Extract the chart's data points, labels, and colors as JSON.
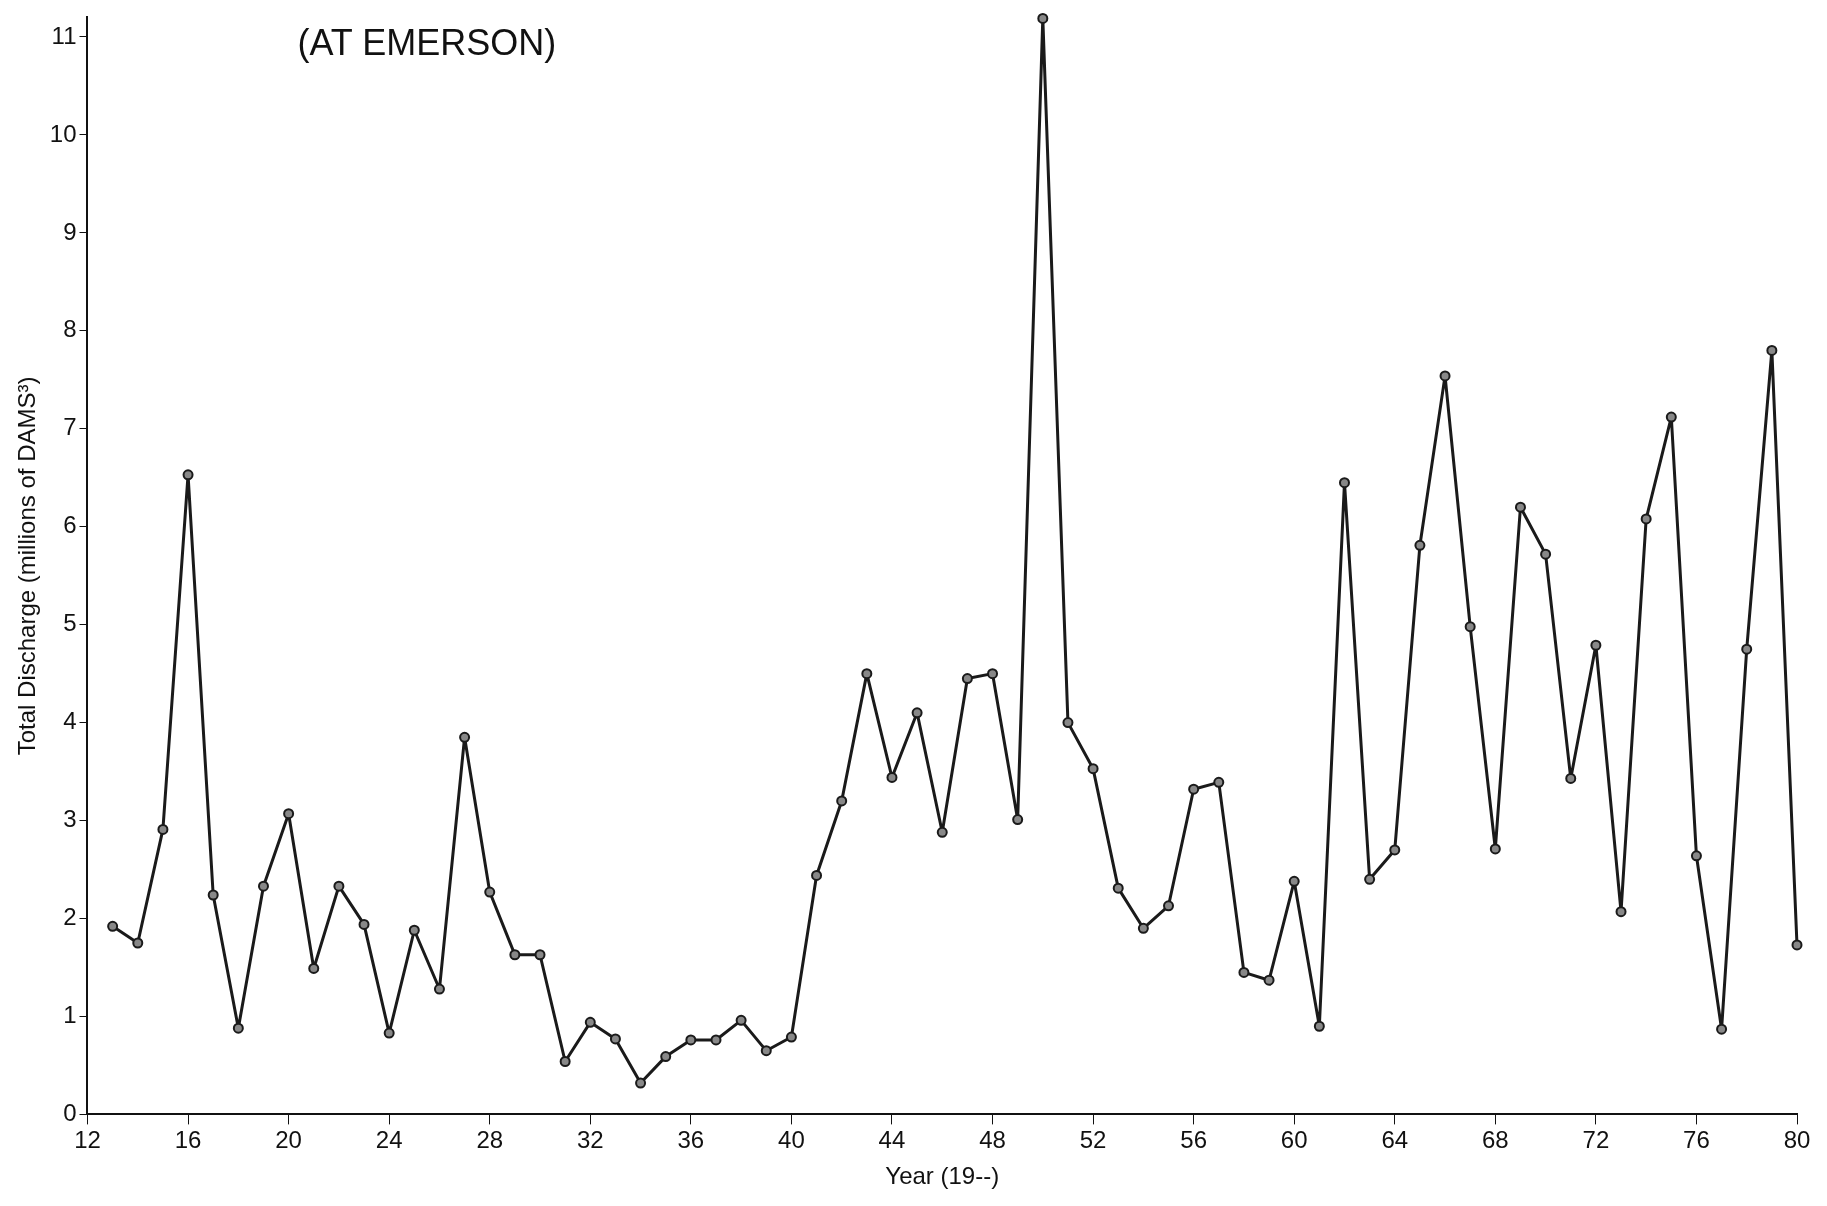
{
  "chart_data": {
    "type": "line",
    "title": "(AT EMERSON)",
    "xlabel": "Year (19--)",
    "ylabel": "Total Discharge (millions of DAMS³)",
    "x": [
      13,
      14,
      15,
      16,
      17,
      18,
      19,
      20,
      21,
      22,
      23,
      24,
      25,
      26,
      27,
      28,
      29,
      30,
      31,
      32,
      33,
      34,
      35,
      36,
      37,
      38,
      39,
      40,
      41,
      42,
      43,
      44,
      45,
      46,
      47,
      48,
      49,
      50,
      51,
      52,
      53,
      54,
      55,
      56,
      57,
      58,
      59,
      60,
      61,
      62,
      63,
      64,
      65,
      66,
      67,
      68,
      69,
      70,
      71,
      72,
      73,
      74,
      75,
      76,
      77,
      78,
      79,
      80
    ],
    "series": [
      {
        "color": "#1a1a1a",
        "values": [
          1.92,
          1.75,
          2.91,
          6.53,
          2.24,
          0.88,
          2.33,
          3.07,
          1.49,
          2.33,
          1.94,
          0.83,
          1.88,
          1.28,
          3.85,
          2.27,
          1.63,
          1.63,
          0.54,
          0.94,
          0.77,
          0.32,
          0.59,
          0.76,
          0.76,
          0.96,
          0.65,
          0.79,
          2.44,
          3.2,
          4.5,
          3.44,
          4.1,
          2.88,
          4.45,
          4.5,
          3.01,
          11.19,
          4.0,
          3.53,
          2.31,
          1.9,
          2.13,
          3.32,
          3.39,
          1.45,
          1.37,
          2.38,
          0.9,
          6.45,
          2.4,
          2.7,
          5.81,
          7.54,
          4.98,
          2.71,
          6.2,
          5.72,
          3.43,
          4.79,
          2.07,
          6.08,
          7.12,
          2.64,
          0.87,
          4.75,
          7.8,
          1.73
        ]
      }
    ],
    "xlim": [
      12,
      80
    ],
    "xticks": [
      12,
      16,
      20,
      24,
      28,
      32,
      36,
      40,
      44,
      48,
      52,
      56,
      60,
      64,
      68,
      72,
      76,
      80
    ],
    "ylim": [
      0,
      11.2
    ],
    "yticks": [
      0,
      1,
      2,
      3,
      4,
      5,
      6,
      7,
      8,
      9,
      10,
      11
    ],
    "grid": false,
    "legend": false,
    "marker": "circle",
    "line_style": "solid"
  }
}
